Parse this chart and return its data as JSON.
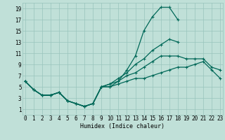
{
  "xlabel": "Humidex (Indice chaleur)",
  "bg_color": "#c0e0d8",
  "grid_color": "#98c4bc",
  "line_color": "#006858",
  "xlim": [
    -0.3,
    23.3
  ],
  "ylim": [
    0,
    20
  ],
  "yticks": [
    1,
    3,
    5,
    7,
    9,
    11,
    13,
    15,
    17,
    19
  ],
  "xticks": [
    0,
    1,
    2,
    3,
    4,
    5,
    6,
    7,
    8,
    9,
    10,
    11,
    12,
    13,
    14,
    15,
    16,
    17,
    18,
    19,
    20,
    21,
    22,
    23
  ],
  "series": [
    [
      6,
      4.5,
      3.5,
      3.5,
      4,
      2.5,
      2,
      1.5,
      2,
      5,
      5,
      6,
      8,
      10.5,
      15,
      17.5,
      19.2,
      19.2,
      17,
      null,
      null,
      null,
      null,
      null
    ],
    [
      6,
      4.5,
      3.5,
      3.5,
      4,
      2.5,
      2,
      1.5,
      2,
      5,
      5.5,
      6.5,
      7.5,
      9,
      10,
      11.5,
      12.5,
      13.5,
      13,
      null,
      null,
      null,
      null,
      null
    ],
    [
      6,
      4.5,
      3.5,
      3.5,
      4,
      2.5,
      2,
      1.5,
      2,
      5,
      5.5,
      6,
      7,
      7.5,
      8.5,
      9.5,
      10.5,
      10.5,
      10.5,
      10,
      10,
      10,
      8.5,
      8
    ],
    [
      6,
      4.5,
      3.5,
      3.5,
      4,
      2.5,
      2,
      1.5,
      2,
      5,
      5,
      5.5,
      6,
      6.5,
      6.5,
      7,
      7.5,
      8,
      8.5,
      8.5,
      9,
      9.5,
      8,
      6.5
    ]
  ],
  "marker": "+",
  "markersize": 3,
  "linewidth": 0.9,
  "tick_fontsize": 5.5,
  "xlabel_fontsize": 6.0
}
